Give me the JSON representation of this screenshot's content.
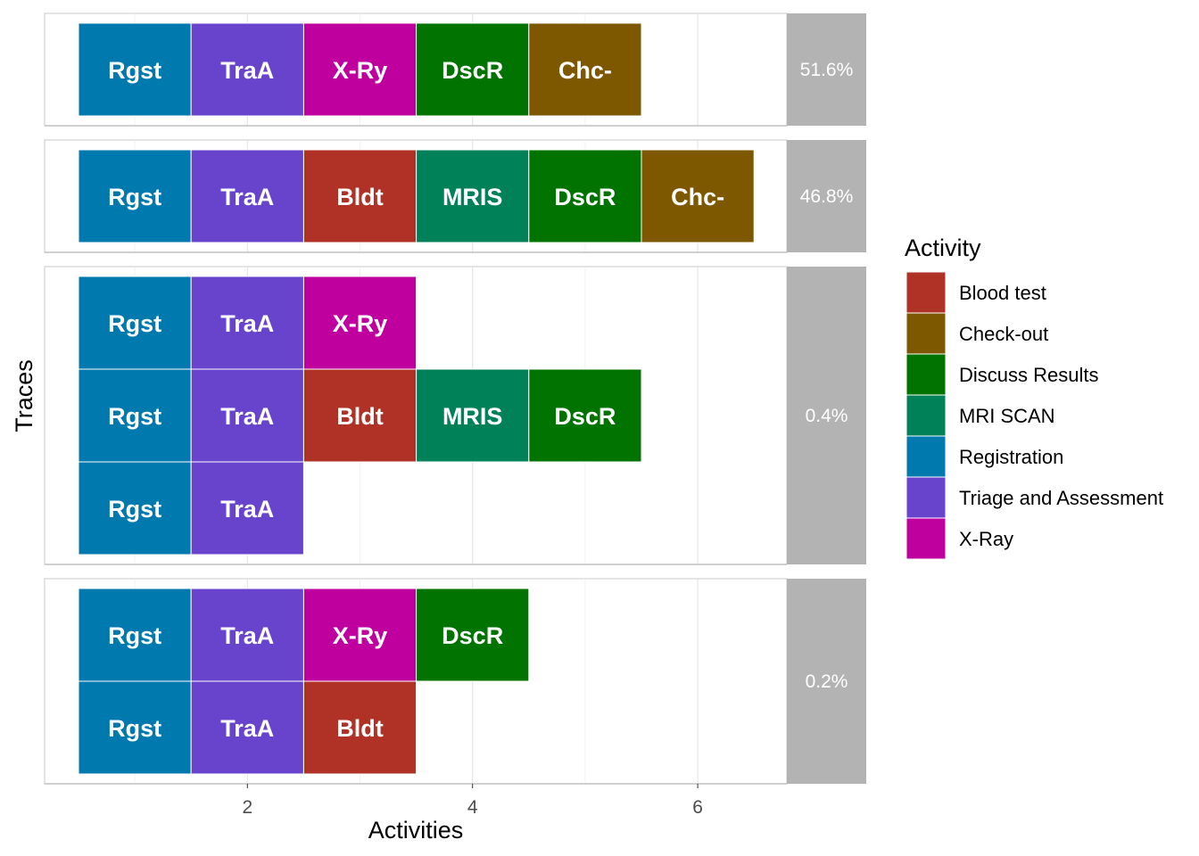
{
  "chart_data": {
    "type": "trace_explorer",
    "xlabel": "Activities",
    "ylabel": "Traces",
    "x_ticks": [
      2,
      4,
      6
    ],
    "xlim": [
      0.5,
      6.8
    ],
    "legend": {
      "title": "Activity",
      "position": "right",
      "items": [
        {
          "name": "Blood test",
          "color": "#b03226"
        },
        {
          "name": "Check-out",
          "color": "#7e5800"
        },
        {
          "name": "Discuss Results",
          "color": "#007300"
        },
        {
          "name": "MRI SCAN",
          "color": "#008158"
        },
        {
          "name": "Registration",
          "color": "#0079ae"
        },
        {
          "name": "Triage and Assessment",
          "color": "#6843cc"
        },
        {
          "name": "X-Ray",
          "color": "#bf009f"
        }
      ]
    },
    "facets": [
      {
        "percentage": "51.6%",
        "traces": [
          {
            "activities": [
              {
                "abbr": "Rgst",
                "activity": "Registration"
              },
              {
                "abbr": "TraA",
                "activity": "Triage and Assessment"
              },
              {
                "abbr": "X-Ry",
                "activity": "X-Ray"
              },
              {
                "abbr": "DscR",
                "activity": "Discuss Results"
              },
              {
                "abbr": "Chc-",
                "activity": "Check-out"
              }
            ]
          }
        ]
      },
      {
        "percentage": "46.8%",
        "traces": [
          {
            "activities": [
              {
                "abbr": "Rgst",
                "activity": "Registration"
              },
              {
                "abbr": "TraA",
                "activity": "Triage and Assessment"
              },
              {
                "abbr": "Bldt",
                "activity": "Blood test"
              },
              {
                "abbr": "MRIS",
                "activity": "MRI SCAN"
              },
              {
                "abbr": "DscR",
                "activity": "Discuss Results"
              },
              {
                "abbr": "Chc-",
                "activity": "Check-out"
              }
            ]
          }
        ]
      },
      {
        "percentage": "0.4%",
        "traces": [
          {
            "activities": [
              {
                "abbr": "Rgst",
                "activity": "Registration"
              },
              {
                "abbr": "TraA",
                "activity": "Triage and Assessment"
              },
              {
                "abbr": "X-Ry",
                "activity": "X-Ray"
              }
            ]
          },
          {
            "activities": [
              {
                "abbr": "Rgst",
                "activity": "Registration"
              },
              {
                "abbr": "TraA",
                "activity": "Triage and Assessment"
              },
              {
                "abbr": "Bldt",
                "activity": "Blood test"
              },
              {
                "abbr": "MRIS",
                "activity": "MRI SCAN"
              },
              {
                "abbr": "DscR",
                "activity": "Discuss Results"
              }
            ]
          },
          {
            "activities": [
              {
                "abbr": "Rgst",
                "activity": "Registration"
              },
              {
                "abbr": "TraA",
                "activity": "Triage and Assessment"
              }
            ]
          }
        ]
      },
      {
        "percentage": "0.2%",
        "traces": [
          {
            "activities": [
              {
                "abbr": "Rgst",
                "activity": "Registration"
              },
              {
                "abbr": "TraA",
                "activity": "Triage and Assessment"
              },
              {
                "abbr": "X-Ry",
                "activity": "X-Ray"
              },
              {
                "abbr": "DscR",
                "activity": "Discuss Results"
              }
            ]
          },
          {
            "activities": [
              {
                "abbr": "Rgst",
                "activity": "Registration"
              },
              {
                "abbr": "TraA",
                "activity": "Triage and Assessment"
              },
              {
                "abbr": "Bldt",
                "activity": "Blood test"
              }
            ]
          }
        ]
      }
    ]
  }
}
